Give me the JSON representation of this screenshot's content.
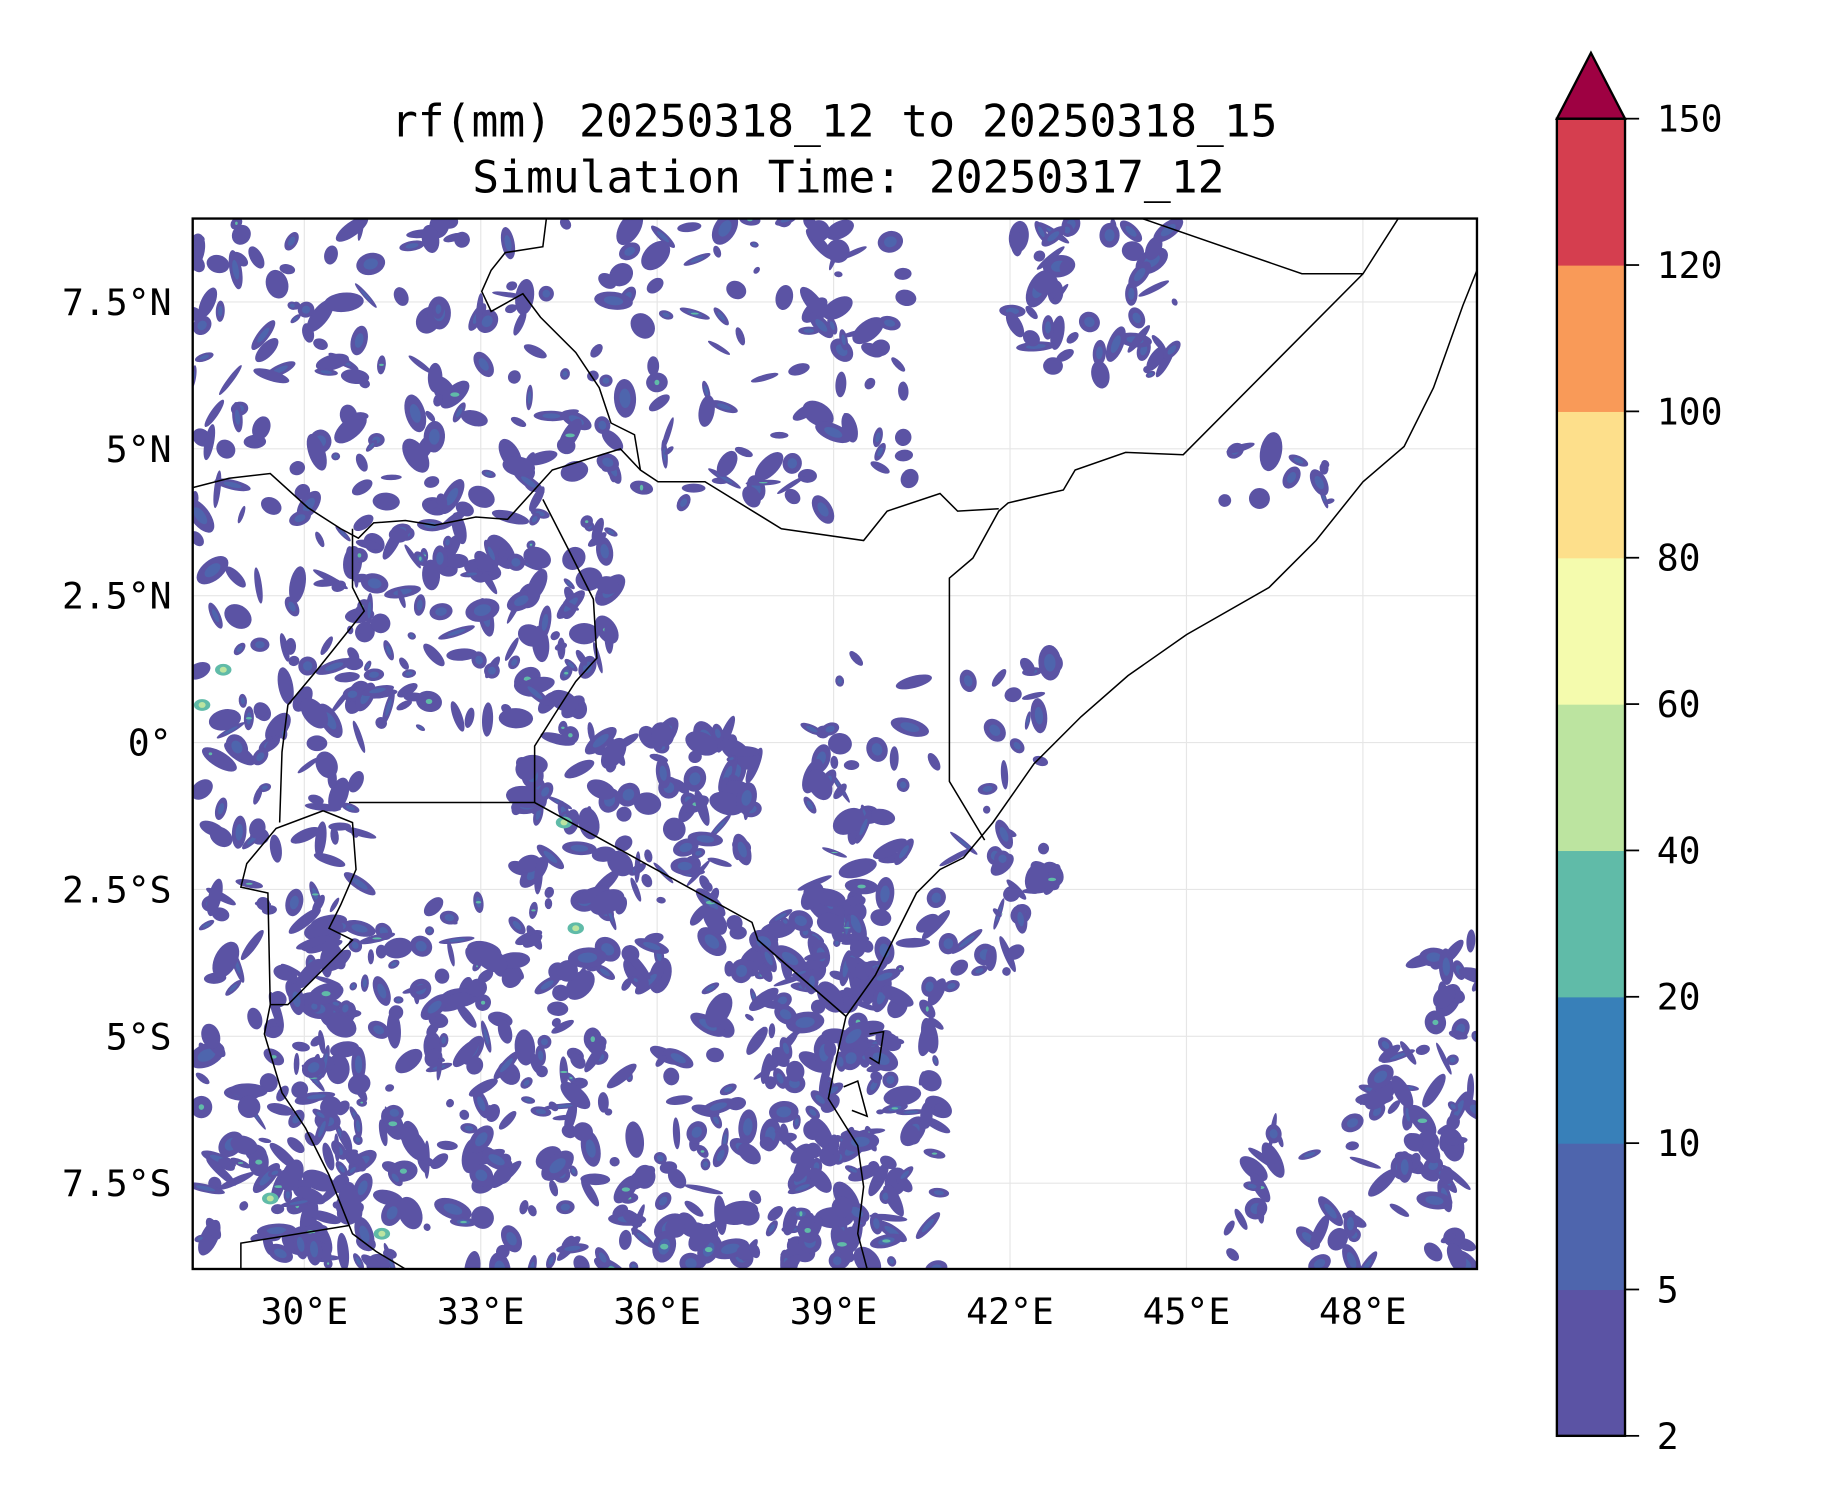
{
  "chart_data": {
    "type": "heatmap",
    "subtype": "filled-contour-map",
    "title": [
      "rf(mm) 20250318_12 to 20250318_15",
      "Simulation Time: 20250317_12"
    ],
    "variable": "rf(mm)",
    "extent": {
      "lon": [
        28.1,
        50.0
      ],
      "lat": [
        -9.0,
        8.9
      ]
    },
    "x_ticks": [
      {
        "value": 30,
        "label": "30°E"
      },
      {
        "value": 33,
        "label": "33°E"
      },
      {
        "value": 36,
        "label": "36°E"
      },
      {
        "value": 39,
        "label": "39°E"
      },
      {
        "value": 42,
        "label": "42°E"
      },
      {
        "value": 45,
        "label": "45°E"
      },
      {
        "value": 48,
        "label": "48°E"
      }
    ],
    "y_ticks": [
      {
        "value": 7.5,
        "label": "7.5°N"
      },
      {
        "value": 5,
        "label": "5°N"
      },
      {
        "value": 2.5,
        "label": "2.5°N"
      },
      {
        "value": 0,
        "label": "0°"
      },
      {
        "value": -2.5,
        "label": "2.5°S"
      },
      {
        "value": -5,
        "label": "5°S"
      },
      {
        "value": -7.5,
        "label": "7.5°S"
      }
    ],
    "grid": true,
    "colorbar": {
      "placement": "right",
      "extend": "max",
      "levels": [
        2,
        5,
        10,
        20,
        40,
        60,
        80,
        100,
        120,
        150
      ],
      "level_labels": [
        "2",
        "5",
        "10",
        "20",
        "40",
        "60",
        "80",
        "100",
        "120",
        "150"
      ],
      "colors": [
        "#5b53a4",
        "#4e65ad",
        "#3880b9",
        "#60bba8",
        "#bce4a0",
        "#f4fbad",
        "#fddf8b",
        "#f99a58",
        "#d53e4f"
      ],
      "over_color": "#9e0142"
    }
  }
}
